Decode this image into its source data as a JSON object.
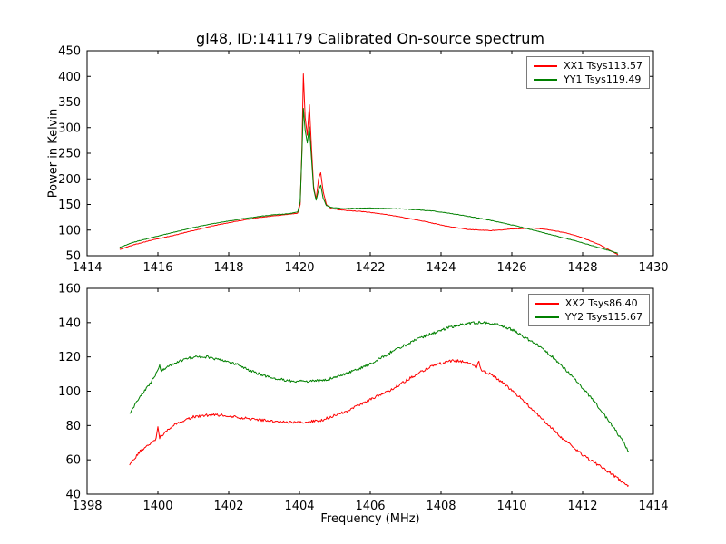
{
  "chart_data": [
    {
      "type": "line",
      "title": "gl48, ID:141179 Calibrated On-source spectrum",
      "ylabel": "Power in Kelvin",
      "xlim": [
        1414,
        1430
      ],
      "ylim": [
        50,
        450
      ],
      "xticks": [
        1414,
        1416,
        1418,
        1420,
        1422,
        1424,
        1426,
        1428,
        1430
      ],
      "yticks": [
        50,
        100,
        150,
        200,
        250,
        300,
        350,
        400,
        450
      ],
      "grid": false,
      "legend_position": "upper right",
      "series": [
        {
          "name": "XX1 Tsys113.57",
          "color": "#ff0000",
          "noise": 0.5,
          "points": [
            [
              1414.92,
              62
            ],
            [
              1415.3,
              71
            ],
            [
              1415.8,
              80
            ],
            [
              1416.4,
              89
            ],
            [
              1417.0,
              99
            ],
            [
              1417.6,
              109
            ],
            [
              1418.2,
              117
            ],
            [
              1418.8,
              124
            ],
            [
              1419.3,
              128
            ],
            [
              1419.7,
              131
            ],
            [
              1419.95,
              133
            ],
            [
              1420.02,
              150
            ],
            [
              1420.07,
              260
            ],
            [
              1420.11,
              405
            ],
            [
              1420.16,
              320
            ],
            [
              1420.22,
              285
            ],
            [
              1420.28,
              345
            ],
            [
              1420.34,
              260
            ],
            [
              1420.4,
              185
            ],
            [
              1420.47,
              160
            ],
            [
              1420.54,
              200
            ],
            [
              1420.6,
              212
            ],
            [
              1420.67,
              175
            ],
            [
              1420.76,
              150
            ],
            [
              1420.9,
              142
            ],
            [
              1421.2,
              139
            ],
            [
              1421.8,
              136
            ],
            [
              1422.4,
              131
            ],
            [
              1423.0,
              124
            ],
            [
              1423.6,
              116
            ],
            [
              1424.2,
              107
            ],
            [
              1424.8,
              101
            ],
            [
              1425.4,
              99
            ],
            [
              1426.0,
              102
            ],
            [
              1426.6,
              104
            ],
            [
              1427.0,
              101
            ],
            [
              1427.5,
              95
            ],
            [
              1428.0,
              85
            ],
            [
              1428.5,
              71
            ],
            [
              1429.0,
              52
            ]
          ]
        },
        {
          "name": "YY1 Tsys119.49",
          "color": "#008000",
          "noise": 0.5,
          "points": [
            [
              1414.92,
              66
            ],
            [
              1415.3,
              76
            ],
            [
              1415.8,
              85
            ],
            [
              1416.4,
              95
            ],
            [
              1417.0,
              105
            ],
            [
              1417.6,
              113
            ],
            [
              1418.2,
              120
            ],
            [
              1418.8,
              126
            ],
            [
              1419.3,
              130
            ],
            [
              1419.7,
              132
            ],
            [
              1419.95,
              135
            ],
            [
              1420.02,
              155
            ],
            [
              1420.07,
              250
            ],
            [
              1420.11,
              338
            ],
            [
              1420.16,
              295
            ],
            [
              1420.22,
              270
            ],
            [
              1420.28,
              302
            ],
            [
              1420.34,
              240
            ],
            [
              1420.4,
              180
            ],
            [
              1420.47,
              158
            ],
            [
              1420.54,
              178
            ],
            [
              1420.6,
              188
            ],
            [
              1420.67,
              162
            ],
            [
              1420.76,
              148
            ],
            [
              1420.9,
              144
            ],
            [
              1421.2,
              142
            ],
            [
              1422.0,
              143
            ],
            [
              1423.0,
              141
            ],
            [
              1423.8,
              137
            ],
            [
              1424.6,
              129
            ],
            [
              1425.4,
              119
            ],
            [
              1426.2,
              107
            ],
            [
              1427.0,
              93
            ],
            [
              1427.8,
              79
            ],
            [
              1428.4,
              67
            ],
            [
              1429.0,
              55
            ]
          ]
        }
      ]
    },
    {
      "type": "line",
      "xlabel": "Frequency (MHz)",
      "xlim": [
        1398,
        1414
      ],
      "ylim": [
        40,
        160
      ],
      "xticks": [
        1398,
        1400,
        1402,
        1404,
        1406,
        1408,
        1410,
        1412,
        1414
      ],
      "yticks": [
        40,
        60,
        80,
        100,
        120,
        140,
        160
      ],
      "grid": false,
      "legend_position": "upper right",
      "series": [
        {
          "name": "XX2 Tsys86.40",
          "color": "#ff0000",
          "noise": 0.8,
          "points": [
            [
              1399.2,
              57
            ],
            [
              1399.5,
              65
            ],
            [
              1399.8,
              70
            ],
            [
              1399.95,
              72
            ],
            [
              1400.0,
              79
            ],
            [
              1400.05,
              73
            ],
            [
              1400.3,
              78
            ],
            [
              1400.6,
              82
            ],
            [
              1401.0,
              85
            ],
            [
              1401.4,
              86
            ],
            [
              1401.8,
              86
            ],
            [
              1402.2,
              85
            ],
            [
              1402.6,
              84
            ],
            [
              1403.0,
              83
            ],
            [
              1403.4,
              82
            ],
            [
              1403.8,
              82
            ],
            [
              1404.2,
              82
            ],
            [
              1404.6,
              83
            ],
            [
              1405.0,
              86
            ],
            [
              1405.4,
              89
            ],
            [
              1405.8,
              93
            ],
            [
              1406.2,
              97
            ],
            [
              1406.6,
              101
            ],
            [
              1407.0,
              106
            ],
            [
              1407.4,
              111
            ],
            [
              1407.8,
              115
            ],
            [
              1408.1,
              117
            ],
            [
              1408.4,
              118
            ],
            [
              1408.7,
              117
            ],
            [
              1409.0,
              114
            ],
            [
              1409.07,
              117
            ],
            [
              1409.15,
              112
            ],
            [
              1409.4,
              110
            ],
            [
              1409.8,
              104
            ],
            [
              1410.2,
              97
            ],
            [
              1410.6,
              89
            ],
            [
              1411.0,
              81
            ],
            [
              1411.4,
              73
            ],
            [
              1411.8,
              66
            ],
            [
              1412.2,
              60
            ],
            [
              1412.6,
              55
            ],
            [
              1413.0,
              49
            ],
            [
              1413.3,
              45
            ]
          ]
        },
        {
          "name": "YY2 Tsys115.67",
          "color": "#008000",
          "noise": 0.8,
          "points": [
            [
              1399.2,
              87
            ],
            [
              1399.5,
              97
            ],
            [
              1399.8,
              105
            ],
            [
              1400.0,
              112
            ],
            [
              1400.05,
              115
            ],
            [
              1400.1,
              112
            ],
            [
              1400.4,
              116
            ],
            [
              1400.8,
              119
            ],
            [
              1401.1,
              120
            ],
            [
              1401.4,
              120
            ],
            [
              1401.8,
              118
            ],
            [
              1402.2,
              116
            ],
            [
              1402.6,
              112
            ],
            [
              1403.0,
              109
            ],
            [
              1403.4,
              107
            ],
            [
              1403.8,
              106
            ],
            [
              1404.2,
              106
            ],
            [
              1404.6,
              106
            ],
            [
              1405.0,
              108
            ],
            [
              1405.4,
              111
            ],
            [
              1405.8,
              114
            ],
            [
              1406.2,
              118
            ],
            [
              1406.6,
              123
            ],
            [
              1407.0,
              127
            ],
            [
              1407.4,
              131
            ],
            [
              1407.8,
              134
            ],
            [
              1408.2,
              137
            ],
            [
              1408.6,
              139
            ],
            [
              1409.0,
              140
            ],
            [
              1409.3,
              140
            ],
            [
              1409.6,
              139
            ],
            [
              1410.0,
              136
            ],
            [
              1410.4,
              131
            ],
            [
              1410.8,
              126
            ],
            [
              1411.2,
              119
            ],
            [
              1411.6,
              111
            ],
            [
              1412.0,
              102
            ],
            [
              1412.4,
              92
            ],
            [
              1412.8,
              81
            ],
            [
              1413.1,
              72
            ],
            [
              1413.3,
              65
            ]
          ]
        }
      ]
    }
  ]
}
